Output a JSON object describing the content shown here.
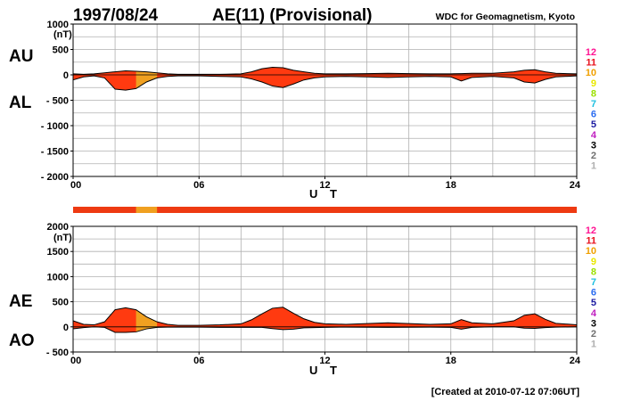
{
  "header": {
    "date": "1997/08/24",
    "title": "AE(11) (Provisional)",
    "source": "WDC for Geomagnetism, Kyoto"
  },
  "footer": {
    "created": "[Created at 2010-07-12 07:06UT]"
  },
  "legend": {
    "labels": [
      "12",
      "11",
      "10",
      "9",
      "8",
      "7",
      "6",
      "5",
      "4",
      "3",
      "2",
      "1"
    ],
    "colors": [
      "#ff1493",
      "#e8101c",
      "#f0a000",
      "#e8e800",
      "#9be000",
      "#20c0e0",
      "#2a6cf0",
      "#1a1aa0",
      "#c020c0",
      "#000000",
      "#707070",
      "#b0b0b0"
    ]
  },
  "colors": {
    "fill_main": "#ff3a10",
    "fill_partial": "#f0a020",
    "station_bar": "#ee3a12"
  },
  "chart_data": [
    {
      "type": "area",
      "name": "AU / AL",
      "side_labels": {
        "upper": "AU",
        "lower": "AL"
      },
      "unit": "(nT)",
      "xlabel": "U T",
      "xlim": [
        0,
        24
      ],
      "xticks": [
        0,
        6,
        12,
        18,
        24
      ],
      "xtick_labels": [
        "00",
        "06",
        "12",
        "18",
        "24"
      ],
      "ylim": [
        -2000,
        1000
      ],
      "yticks": [
        1000,
        500,
        0,
        -500,
        -1000,
        -1500,
        -2000
      ],
      "ytick_labels": [
        "1000",
        "500",
        "0",
        "- 500",
        "- 1000",
        "- 1500",
        "- 2000"
      ],
      "grid": true,
      "partial_coverage_hours": [
        3.0,
        4.0
      ],
      "series": [
        {
          "name": "AU",
          "x": [
            0,
            0.5,
            1,
            1.5,
            2,
            2.5,
            3,
            3.5,
            4,
            4.5,
            5,
            6,
            7,
            8,
            8.5,
            9,
            9.5,
            10,
            10.5,
            11,
            11.5,
            12,
            13,
            14,
            15,
            16,
            17,
            18,
            18.5,
            19,
            20,
            21,
            21.5,
            22,
            22.5,
            23,
            24
          ],
          "values": [
            20,
            10,
            20,
            40,
            60,
            80,
            70,
            60,
            40,
            20,
            10,
            10,
            10,
            20,
            60,
            120,
            150,
            140,
            90,
            60,
            30,
            20,
            20,
            25,
            30,
            25,
            20,
            20,
            25,
            30,
            30,
            60,
            90,
            100,
            60,
            30,
            20
          ]
        },
        {
          "name": "AL",
          "x": [
            0,
            0.5,
            1,
            1.5,
            2,
            2.5,
            3,
            3.5,
            4,
            4.5,
            5,
            6,
            7,
            8,
            8.5,
            9,
            9.5,
            10,
            10.5,
            11,
            11.5,
            12,
            13,
            14,
            15,
            16,
            17,
            18,
            18.5,
            19,
            20,
            21,
            21.5,
            22,
            22.5,
            23,
            24
          ],
          "values": [
            -100,
            -40,
            -20,
            -60,
            -280,
            -300,
            -270,
            -140,
            -60,
            -30,
            -20,
            -20,
            -30,
            -40,
            -80,
            -140,
            -220,
            -250,
            -180,
            -100,
            -60,
            -40,
            -30,
            -40,
            -50,
            -40,
            -30,
            -40,
            -120,
            -50,
            -30,
            -60,
            -140,
            -160,
            -90,
            -40,
            -20
          ]
        }
      ]
    },
    {
      "type": "area",
      "name": "AE / AO",
      "side_labels": {
        "upper": "AE",
        "lower": "AO"
      },
      "unit": "(nT)",
      "xlabel": "U T",
      "xlim": [
        0,
        24
      ],
      "xticks": [
        0,
        6,
        12,
        18,
        24
      ],
      "xtick_labels": [
        "00",
        "06",
        "12",
        "18",
        "24"
      ],
      "ylim": [
        -500,
        2000
      ],
      "yticks": [
        2000,
        1500,
        1000,
        500,
        0,
        -500
      ],
      "ytick_labels": [
        "2000",
        "1500",
        "1000",
        "500",
        "0",
        "- 500"
      ],
      "grid": true,
      "partial_coverage_hours": [
        3.0,
        4.0
      ],
      "series": [
        {
          "name": "AE",
          "x": [
            0,
            0.5,
            1,
            1.5,
            2,
            2.5,
            3,
            3.5,
            4,
            4.5,
            5,
            6,
            7,
            8,
            8.5,
            9,
            9.5,
            10,
            10.5,
            11,
            11.5,
            12,
            13,
            14,
            15,
            16,
            17,
            18,
            18.5,
            19,
            20,
            21,
            21.5,
            22,
            22.5,
            23,
            24
          ],
          "values": [
            120,
            50,
            40,
            100,
            340,
            380,
            340,
            200,
            100,
            50,
            30,
            30,
            40,
            60,
            140,
            260,
            370,
            390,
            270,
            160,
            90,
            60,
            50,
            65,
            80,
            65,
            50,
            60,
            145,
            80,
            60,
            120,
            230,
            260,
            150,
            70,
            40
          ]
        },
        {
          "name": "AO",
          "x": [
            0,
            0.5,
            1,
            1.5,
            2,
            2.5,
            3,
            3.5,
            4,
            4.5,
            5,
            6,
            7,
            8,
            8.5,
            9,
            9.5,
            10,
            10.5,
            11,
            11.5,
            12,
            13,
            14,
            15,
            16,
            17,
            18,
            18.5,
            19,
            20,
            21,
            21.5,
            22,
            22.5,
            23,
            24
          ],
          "values": [
            -40,
            -15,
            0,
            -10,
            -110,
            -110,
            -100,
            -40,
            -10,
            -5,
            -5,
            -5,
            -10,
            -10,
            -10,
            -10,
            -35,
            -55,
            -45,
            -20,
            -15,
            -10,
            -5,
            -8,
            -10,
            -8,
            -5,
            -10,
            -45,
            -10,
            0,
            0,
            -25,
            -30,
            -15,
            -5,
            0
          ]
        }
      ]
    }
  ]
}
